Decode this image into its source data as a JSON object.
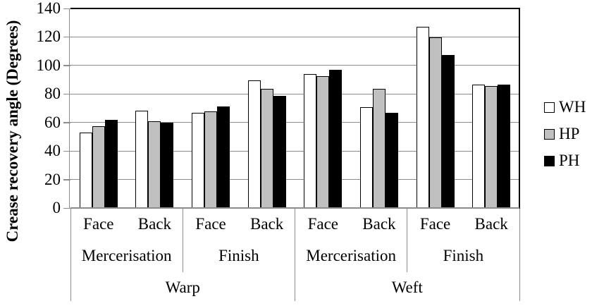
{
  "chart_data": {
    "type": "bar",
    "title": "",
    "ylabel": "Crease recovery angle (Degrees)",
    "xlabel": "",
    "ylim": [
      0,
      140
    ],
    "ytick_step": 20,
    "yticks": [
      0,
      20,
      40,
      60,
      80,
      100,
      120,
      140
    ],
    "grid": true,
    "legend_position": "right",
    "x_axis": {
      "level1": [
        "Face",
        "Back",
        "Face",
        "Back",
        "Face",
        "Back",
        "Face",
        "Back"
      ],
      "level2": [
        {
          "label": "Mercerisation",
          "span": 2
        },
        {
          "label": "Finish",
          "span": 2
        },
        {
          "label": "Mercerisation",
          "span": 2
        },
        {
          "label": "Finish",
          "span": 2
        }
      ],
      "level3": [
        {
          "label": "Warp",
          "span": 4
        },
        {
          "label": "Weft",
          "span": 4
        }
      ]
    },
    "series": [
      {
        "name": "WH",
        "fill": "#ffffff",
        "values": [
          53,
          68.5,
          67,
          89.5,
          94,
          70.5,
          127,
          86.5
        ]
      },
      {
        "name": "HP",
        "fill": "#c0c0c0",
        "values": [
          57.5,
          61,
          68,
          83.5,
          92.5,
          83.5,
          119.5,
          85.5
        ]
      },
      {
        "name": "PH",
        "fill": "#000000",
        "values": [
          62,
          60,
          71,
          78.5,
          97,
          67,
          107.5,
          86.5
        ]
      }
    ]
  },
  "colors": {
    "background": "#ffffff",
    "grid": "#8c8c8c",
    "axis": "#8c8c8c",
    "separator": "#8c8c8c",
    "plot_frame": "#000000",
    "bar_border": "#000000",
    "text": "#000000"
  }
}
